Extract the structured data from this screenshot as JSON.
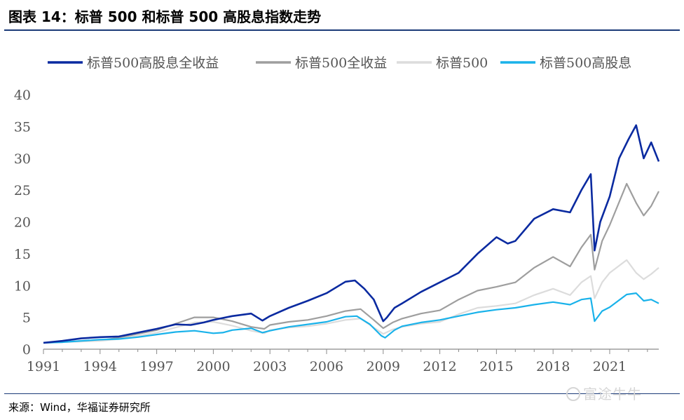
{
  "title": "图表 14：标普 500 和标普 500 高股息指数走势",
  "source": "来源：Wind，华福证券研究所",
  "watermark": "富途牛牛",
  "chart_data": {
    "type": "line",
    "title": "",
    "xlabel": "",
    "ylabel": "",
    "ylim": [
      0,
      40
    ],
    "xlim": [
      1991,
      2023.6
    ],
    "grid": false,
    "legend_position": "top",
    "x_ticks": [
      "1991",
      "1994",
      "1997",
      "2000",
      "2003",
      "2006",
      "2009",
      "2012",
      "2015",
      "2018",
      "2021"
    ],
    "y_ticks": [
      0,
      5,
      10,
      15,
      20,
      25,
      30,
      35,
      40
    ],
    "series": [
      {
        "name": "标普500高股息全收益",
        "color": "#0a2aa0",
        "x": [
          1991,
          1992,
          1993,
          1994,
          1995,
          1996,
          1997,
          1998,
          1998.8,
          1999.5,
          2000,
          2000.5,
          2001,
          2002,
          2002.6,
          2003,
          2004,
          2005,
          2006,
          2007,
          2007.5,
          2008,
          2008.5,
          2009.0,
          2009.2,
          2009.6,
          2010,
          2011,
          2012,
          2013,
          2014,
          2015,
          2015.6,
          2016,
          2017,
          2018,
          2018.9,
          2019.5,
          2020.0,
          2020.2,
          2020.5,
          2021,
          2021.5,
          2022.0,
          2022.4,
          2022.8,
          2023.2,
          2023.6
        ],
        "y": [
          1.0,
          1.3,
          1.7,
          1.9,
          2.0,
          2.6,
          3.2,
          3.9,
          3.8,
          4.2,
          4.6,
          4.9,
          5.2,
          5.6,
          4.5,
          5.2,
          6.5,
          7.6,
          8.8,
          10.6,
          10.8,
          9.5,
          7.8,
          4.4,
          5.0,
          6.5,
          7.2,
          9.0,
          10.5,
          12.0,
          15.0,
          17.6,
          16.6,
          17.0,
          20.5,
          22.0,
          21.5,
          25.0,
          27.5,
          15.5,
          20.0,
          24.0,
          30.0,
          33.0,
          35.2,
          30.0,
          32.5,
          29.5
        ]
      },
      {
        "name": "标普500全收益",
        "color": "#9e9e9e",
        "x": [
          1991,
          1992,
          1993,
          1994,
          1995,
          1996,
          1997,
          1998,
          1999,
          2000,
          2001,
          2002,
          2002.7,
          2003,
          2004,
          2005,
          2006,
          2007,
          2007.8,
          2008.5,
          2009.0,
          2009.5,
          2010,
          2011,
          2012,
          2013,
          2014,
          2015,
          2016,
          2017,
          2018,
          2018.9,
          2019.5,
          2020.0,
          2020.2,
          2020.6,
          2021,
          2021.9,
          2022.4,
          2022.8,
          2023.2,
          2023.6
        ],
        "y": [
          1.0,
          1.1,
          1.3,
          1.4,
          1.8,
          2.4,
          3.0,
          4.0,
          5.0,
          5.0,
          4.4,
          3.5,
          3.2,
          3.8,
          4.3,
          4.6,
          5.2,
          6.0,
          6.3,
          4.6,
          3.3,
          4.2,
          4.8,
          5.6,
          6.1,
          7.8,
          9.2,
          9.8,
          10.5,
          12.8,
          14.5,
          13.0,
          16.0,
          18.0,
          12.5,
          17.0,
          19.5,
          26.0,
          23.0,
          21.0,
          22.5,
          24.8
        ]
      },
      {
        "name": "标普500",
        "color": "#dcdcdc",
        "x": [
          1991,
          1992,
          1993,
          1994,
          1995,
          1996,
          1997,
          1998,
          1999,
          2000,
          2001,
          2002,
          2002.7,
          2003,
          2004,
          2005,
          2006,
          2007,
          2007.8,
          2008.5,
          2009.0,
          2009.5,
          2010,
          2011,
          2012,
          2013,
          2014,
          2015,
          2016,
          2017,
          2018,
          2018.9,
          2019.5,
          2020.0,
          2020.2,
          2020.6,
          2021,
          2021.9,
          2022.4,
          2022.8,
          2023.2,
          2023.6
        ],
        "y": [
          1.0,
          1.1,
          1.2,
          1.3,
          1.6,
          2.1,
          2.6,
          3.4,
          4.2,
          4.3,
          3.7,
          2.9,
          2.5,
          3.0,
          3.4,
          3.6,
          4.0,
          4.6,
          4.8,
          3.4,
          2.4,
          3.1,
          3.5,
          4.0,
          4.3,
          5.5,
          6.5,
          6.8,
          7.2,
          8.5,
          9.5,
          8.5,
          10.5,
          11.5,
          8.0,
          10.5,
          12.0,
          14.0,
          12.0,
          11.0,
          11.8,
          12.8
        ]
      },
      {
        "name": "标普500高股息",
        "color": "#19b2ea",
        "x": [
          1991,
          1992,
          1993,
          1994,
          1995,
          1996,
          1997,
          1998,
          1999,
          2000,
          2000.5,
          2001,
          2002,
          2002.6,
          2003,
          2004,
          2005,
          2006,
          2007,
          2007.6,
          2008.3,
          2008.9,
          2009.1,
          2009.6,
          2010,
          2011,
          2012,
          2013,
          2014,
          2015,
          2016,
          2017,
          2018,
          2018.9,
          2019.5,
          2020.0,
          2020.2,
          2020.6,
          2021,
          2021.9,
          2022.4,
          2022.8,
          2023.2,
          2023.6
        ],
        "y": [
          1.0,
          1.1,
          1.3,
          1.5,
          1.6,
          1.9,
          2.3,
          2.7,
          2.9,
          2.5,
          2.6,
          3.0,
          3.3,
          2.6,
          2.9,
          3.5,
          3.9,
          4.3,
          5.1,
          5.2,
          3.9,
          2.1,
          1.8,
          3.0,
          3.6,
          4.2,
          4.6,
          5.2,
          5.8,
          6.2,
          6.5,
          7.0,
          7.4,
          7.0,
          7.8,
          8.0,
          4.4,
          6.0,
          6.6,
          8.6,
          8.8,
          7.6,
          7.8,
          7.2
        ]
      }
    ]
  }
}
